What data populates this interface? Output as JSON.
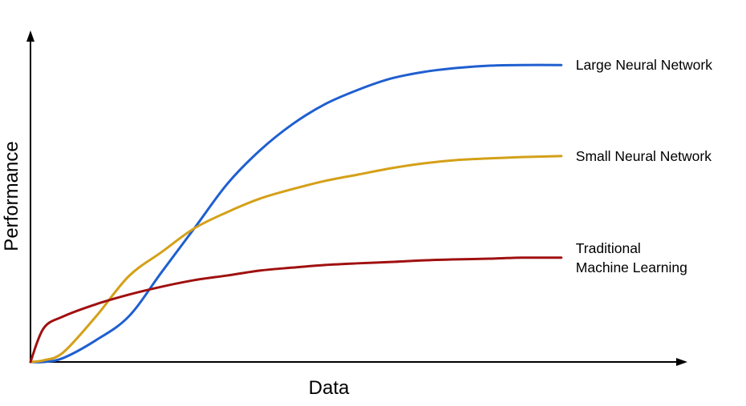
{
  "chart_data": {
    "type": "line",
    "x_label": "Data",
    "y_label": "Performance",
    "x": [
      0,
      2,
      5,
      10,
      15,
      20,
      25,
      30,
      35,
      40,
      45,
      50,
      55,
      60,
      65,
      70,
      75,
      81
    ],
    "xlim": [
      0,
      100
    ],
    "ylim": [
      0,
      100
    ],
    "series": [
      {
        "name": "Large Neural Network",
        "color": "#1f5fd0",
        "values": [
          0,
          0,
          1.2,
          6.6,
          13.8,
          27.2,
          40.5,
          53.9,
          64.1,
          72.1,
          78.2,
          82.5,
          85.9,
          87.9,
          89.1,
          89.8,
          90.0,
          90.0
        ]
      },
      {
        "name": "Small Neural Network",
        "color": "#d4a017",
        "values": [
          0,
          0.5,
          2.9,
          13.8,
          26.0,
          33.3,
          40.5,
          45.4,
          49.5,
          52.4,
          54.9,
          56.8,
          58.7,
          60.2,
          61.2,
          61.7,
          62.1,
          62.4
        ]
      },
      {
        "name": "Traditional\nMachine Learning",
        "color": "#a01010",
        "values": [
          0,
          10.2,
          13.8,
          17.5,
          20.4,
          22.8,
          24.8,
          26.2,
          27.7,
          28.6,
          29.4,
          29.9,
          30.3,
          30.8,
          31.1,
          31.3,
          31.6,
          31.6
        ]
      }
    ]
  }
}
